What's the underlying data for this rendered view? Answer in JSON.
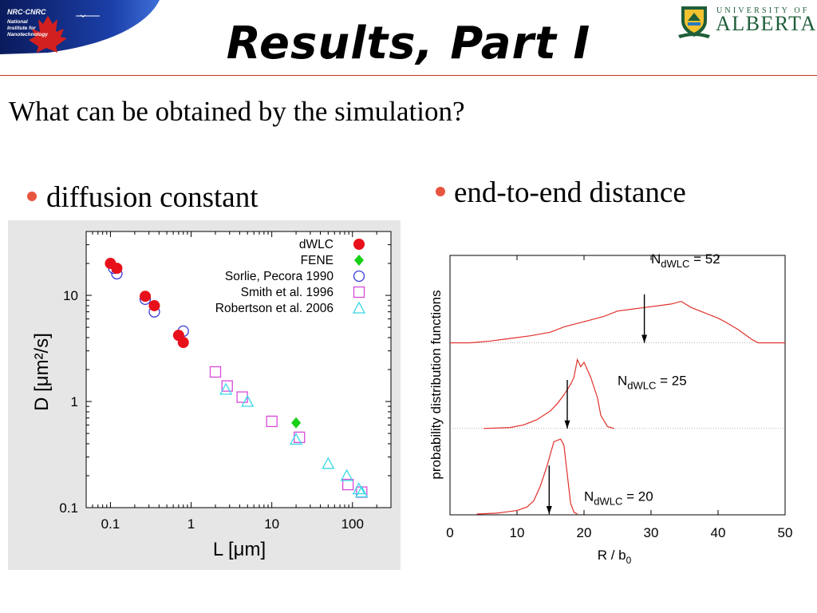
{
  "header": {
    "title": "Results, Part I",
    "nrc_logo": {
      "top": "NRC·CNRC",
      "lines": [
        "National",
        "Institute for",
        "Nanotechnology"
      ]
    },
    "ua_logo": {
      "small": "UNIVERSITY OF",
      "big": "ALBERTA"
    }
  },
  "question": "What can be obtained by the simulation?",
  "bullets": [
    {
      "label": "diffusion constant"
    },
    {
      "label": "end-to-end distance"
    }
  ],
  "colors": {
    "accent": "#c0392b",
    "bullet": "#e8553f",
    "curve": "#e0302a",
    "dwlc": "#e8101a",
    "fene": "#18d018",
    "sorlie": "#3a3ad8",
    "smith": "#d84ad8",
    "robertson": "#38d8e8",
    "ua_green": "#1f5e3a"
  },
  "chart_data": [
    {
      "type": "scatter",
      "xlabel": "L [μm]",
      "ylabel": "D [μm²/s]",
      "xscale": "log",
      "yscale": "log",
      "xlim": [
        0.05,
        300
      ],
      "ylim": [
        0.1,
        40
      ],
      "xticks": [
        0.1,
        1,
        10,
        100
      ],
      "xtick_labels": [
        "0.1",
        "1",
        "10",
        "100"
      ],
      "yticks": [
        0.1,
        1,
        10
      ],
      "ytick_labels": [
        "0.1",
        "1",
        "10"
      ],
      "legend": "top-right",
      "series": [
        {
          "name": "dWLC",
          "marker": "filled-circle",
          "color": "#e8101a",
          "points": [
            [
              0.1,
              20
            ],
            [
              0.12,
              18
            ],
            [
              0.27,
              9.8
            ],
            [
              0.35,
              8
            ],
            [
              0.7,
              4.2
            ],
            [
              0.8,
              3.6
            ]
          ]
        },
        {
          "name": "FENE",
          "marker": "filled-diamond",
          "color": "#18d018",
          "points": [
            [
              20,
              0.63
            ]
          ]
        },
        {
          "name": "Sorlie, Pecora 1990",
          "marker": "open-circle",
          "color": "#3a3ad8",
          "points": [
            [
              0.11,
              18
            ],
            [
              0.12,
              16
            ],
            [
              0.27,
              9.2
            ],
            [
              0.35,
              7
            ],
            [
              0.8,
              4.6
            ]
          ]
        },
        {
          "name": "Smith et al. 1996",
          "marker": "open-square",
          "color": "#d84ad8",
          "points": [
            [
              2,
              1.9
            ],
            [
              2.8,
              1.4
            ],
            [
              4.3,
              1.1
            ],
            [
              10,
              0.65
            ],
            [
              22,
              0.46
            ],
            [
              88,
              0.165
            ],
            [
              130,
              0.14
            ]
          ]
        },
        {
          "name": "Robertson et al. 2006",
          "marker": "open-triangle",
          "color": "#38d8e8",
          "points": [
            [
              2.7,
              1.3
            ],
            [
              5,
              1
            ],
            [
              20,
              0.44
            ],
            [
              50,
              0.26
            ],
            [
              85,
              0.2
            ],
            [
              120,
              0.15
            ],
            [
              130,
              0.14
            ]
          ]
        }
      ]
    },
    {
      "type": "line",
      "xlabel": "R / b",
      "xlabel_sub": "0",
      "ylabel": "probability distribution functions",
      "xlim": [
        0,
        50
      ],
      "xticks": [
        0,
        10,
        20,
        30,
        40,
        50
      ],
      "xtick_labels": [
        "0",
        "10",
        "20",
        "30",
        "40",
        "50"
      ],
      "series": [
        {
          "name": "N_dWLC = 52",
          "label_main": "N",
          "label_sub": "dWLC",
          "label_eq": " = 52",
          "baseline": 0.66,
          "arrow_x": 29,
          "label_x": 30,
          "label_y": 0.9,
          "points": [
            [
              0,
              0
            ],
            [
              3,
              0
            ],
            [
              6,
              0.02
            ],
            [
              9,
              0.05
            ],
            [
              12,
              0.08
            ],
            [
              15,
              0.12
            ],
            [
              17,
              0.18
            ],
            [
              19,
              0.22
            ],
            [
              21,
              0.26
            ],
            [
              23,
              0.3
            ],
            [
              25,
              0.36
            ],
            [
              27,
              0.38
            ],
            [
              29,
              0.4
            ],
            [
              31,
              0.42
            ],
            [
              33,
              0.44
            ],
            [
              34.5,
              0.47
            ],
            [
              36,
              0.4
            ],
            [
              38,
              0.34
            ],
            [
              40,
              0.28
            ],
            [
              41,
              0.24
            ],
            [
              43,
              0.15
            ],
            [
              45,
              0.04
            ],
            [
              46,
              0
            ],
            [
              50,
              0
            ]
          ]
        },
        {
          "name": "N_dWLC = 25",
          "label_main": "N",
          "label_sub": "dWLC",
          "label_eq": " = 25",
          "baseline": 0.33,
          "arrow_x": 17.5,
          "label_x": 25,
          "label_y": 0.49,
          "points": [
            [
              5,
              0
            ],
            [
              9,
              0.01
            ],
            [
              11,
              0.04
            ],
            [
              13,
              0.1
            ],
            [
              15,
              0.2
            ],
            [
              16,
              0.28
            ],
            [
              17,
              0.38
            ],
            [
              18,
              0.5
            ],
            [
              18.5,
              0.58
            ],
            [
              19,
              0.78
            ],
            [
              19.5,
              0.7
            ],
            [
              20,
              0.75
            ],
            [
              21,
              0.58
            ],
            [
              22,
              0.35
            ],
            [
              22.5,
              0.15
            ],
            [
              23.5,
              0.02
            ],
            [
              24.5,
              0
            ]
          ]
        },
        {
          "name": "N_dWLC = 20",
          "label_main": "N",
          "label_sub": "dWLC",
          "label_eq": " = 20",
          "baseline": 0.0,
          "arrow_x": 14.8,
          "label_x": 20,
          "label_y": 0.15,
          "points": [
            [
              4,
              0
            ],
            [
              7,
              0.01
            ],
            [
              10,
              0.04
            ],
            [
              11.5,
              0.08
            ],
            [
              12.5,
              0.15
            ],
            [
              13.5,
              0.32
            ],
            [
              14.5,
              0.55
            ],
            [
              15.5,
              0.82
            ],
            [
              16.5,
              0.85
            ],
            [
              17,
              0.78
            ],
            [
              17.5,
              0.45
            ],
            [
              18,
              0.12
            ],
            [
              18.5,
              0.02
            ],
            [
              19,
              0
            ]
          ]
        }
      ]
    }
  ]
}
